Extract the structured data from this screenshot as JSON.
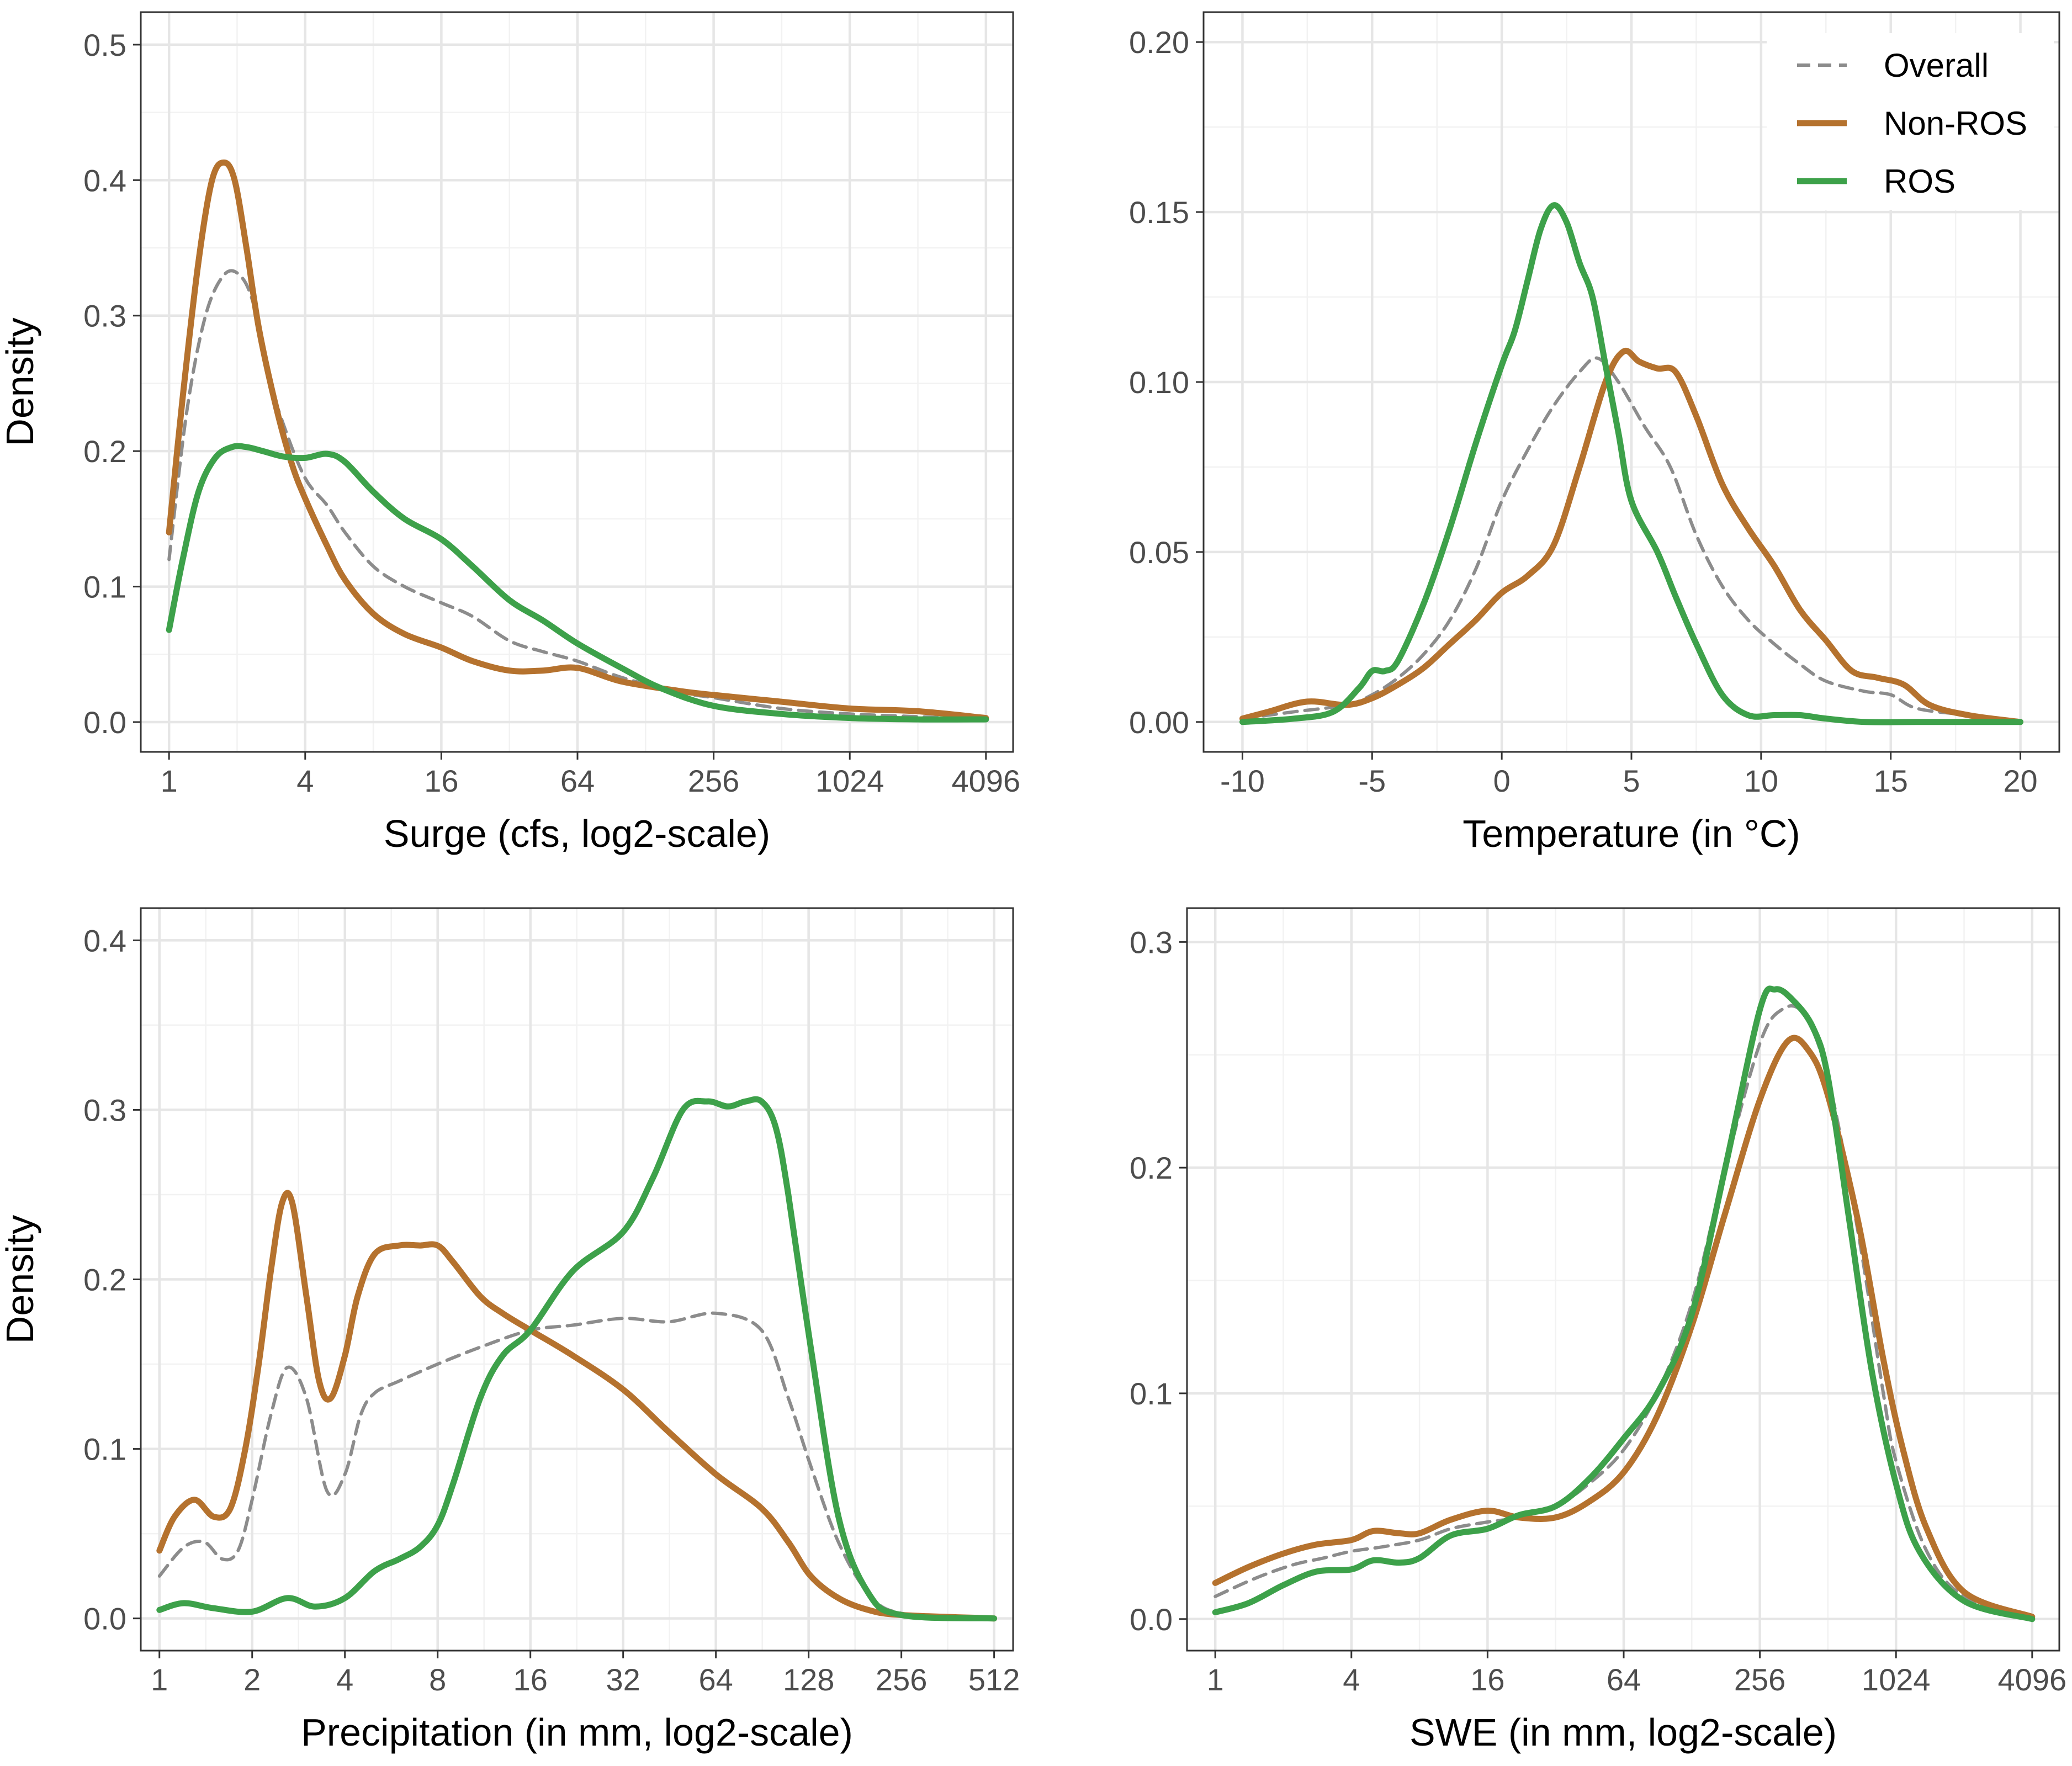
{
  "colors": {
    "overall": "#8c8c8c",
    "non_ros": "#b5722e",
    "ros": "#3da14a"
  },
  "legend": {
    "position": "top-right",
    "entries": [
      {
        "key": "overall",
        "label": "Overall"
      },
      {
        "key": "non_ros",
        "label": "Non-ROS"
      },
      {
        "key": "ros",
        "label": "ROS"
      }
    ]
  },
  "chart_data": [
    {
      "type": "line",
      "xlabel": "Surge (cfs, log2-scale)",
      "ylabel": "Density",
      "xscale": "log2",
      "xlim": [
        0.75,
        5400
      ],
      "ylim": [
        -0.022,
        0.524
      ],
      "xticks": [
        1,
        4,
        16,
        64,
        256,
        1024,
        4096
      ],
      "xtick_labels": [
        "1",
        "4",
        "16",
        "64",
        "256",
        "1024",
        "4096"
      ],
      "yticks": [
        0.0,
        0.1,
        0.2,
        0.3,
        0.4,
        0.5
      ],
      "ytick_labels": [
        "0.0",
        "0.1",
        "0.2",
        "0.3",
        "0.4",
        "0.5"
      ],
      "series": [
        {
          "key": "overall",
          "name": "Overall",
          "x": [
            1,
            1.2,
            1.45,
            1.75,
            2.05,
            2.35,
            2.7,
            3.2,
            4,
            5,
            6,
            8,
            11,
            16,
            22,
            32,
            45,
            64,
            100,
            180,
            256,
            512,
            1024,
            2048,
            4096
          ],
          "y": [
            0.12,
            0.23,
            0.3,
            0.33,
            0.33,
            0.31,
            0.26,
            0.22,
            0.18,
            0.16,
            0.14,
            0.115,
            0.1,
            0.088,
            0.078,
            0.06,
            0.052,
            0.045,
            0.033,
            0.022,
            0.018,
            0.01,
            0.006,
            0.004,
            0.002
          ]
        },
        {
          "key": "non_ros",
          "name": "Non-ROS",
          "x": [
            1,
            1.15,
            1.35,
            1.55,
            1.75,
            1.95,
            2.2,
            2.5,
            3,
            3.5,
            4,
            5,
            6,
            8,
            11,
            16,
            22,
            32,
            45,
            64,
            100,
            180,
            256,
            512,
            1024,
            2048,
            4096
          ],
          "y": [
            0.14,
            0.24,
            0.34,
            0.4,
            0.413,
            0.4,
            0.35,
            0.29,
            0.23,
            0.19,
            0.165,
            0.13,
            0.105,
            0.08,
            0.065,
            0.055,
            0.045,
            0.038,
            0.038,
            0.04,
            0.03,
            0.023,
            0.02,
            0.015,
            0.01,
            0.008,
            0.003
          ]
        },
        {
          "key": "ros",
          "name": "ROS",
          "x": [
            1,
            1.15,
            1.35,
            1.6,
            1.9,
            2.2,
            2.6,
            3.2,
            4,
            5,
            6,
            8,
            11,
            16,
            22,
            32,
            45,
            64,
            100,
            150,
            256,
            512,
            1024,
            2048,
            4096
          ],
          "y": [
            0.068,
            0.12,
            0.17,
            0.195,
            0.203,
            0.203,
            0.2,
            0.196,
            0.195,
            0.198,
            0.192,
            0.17,
            0.15,
            0.135,
            0.115,
            0.09,
            0.075,
            0.058,
            0.04,
            0.025,
            0.012,
            0.006,
            0.003,
            0.002,
            0.002
          ]
        }
      ]
    },
    {
      "type": "line",
      "xlabel": "Temperature (in °C)",
      "ylabel": "",
      "xscale": "linear",
      "xlim": [
        -11.5,
        21.5
      ],
      "ylim": [
        -0.0088,
        0.2088
      ],
      "xticks": [
        -10,
        -5,
        0,
        5,
        10,
        15,
        20
      ],
      "xtick_labels": [
        "-10",
        "-5",
        "0",
        "5",
        "10",
        "15",
        "20"
      ],
      "yticks": [
        0.0,
        0.05,
        0.1,
        0.15,
        0.2
      ],
      "ytick_labels": [
        "0.00",
        "0.05",
        "0.10",
        "0.15",
        "0.20"
      ],
      "series": [
        {
          "key": "overall",
          "name": "Overall",
          "x": [
            -10,
            -8,
            -6,
            -5,
            -4,
            -3,
            -2,
            -1,
            0,
            1,
            2,
            3,
            3.7,
            4.5,
            5.5,
            6.5,
            7.5,
            8.5,
            9.5,
            10.5,
            11.5,
            12.5,
            14,
            15,
            16,
            18,
            20
          ],
          "y": [
            0.001,
            0.003,
            0.005,
            0.008,
            0.013,
            0.02,
            0.03,
            0.045,
            0.065,
            0.08,
            0.093,
            0.103,
            0.107,
            0.1,
            0.087,
            0.075,
            0.055,
            0.04,
            0.03,
            0.023,
            0.017,
            0.012,
            0.009,
            0.008,
            0.004,
            0.002,
            0.0
          ]
        },
        {
          "key": "non_ros",
          "name": "Non-ROS",
          "x": [
            -10,
            -9,
            -7.5,
            -6,
            -5,
            -4,
            -3,
            -2,
            -1,
            0,
            1,
            2,
            3,
            4,
            4.7,
            5.3,
            6,
            6.7,
            7.5,
            8.5,
            9.5,
            10.5,
            11.5,
            12.5,
            13.5,
            14.5,
            15.5,
            16.5,
            18,
            20
          ],
          "y": [
            0.001,
            0.003,
            0.006,
            0.005,
            0.007,
            0.011,
            0.016,
            0.023,
            0.03,
            0.038,
            0.043,
            0.052,
            0.075,
            0.1,
            0.109,
            0.106,
            0.104,
            0.103,
            0.09,
            0.07,
            0.057,
            0.046,
            0.033,
            0.024,
            0.015,
            0.013,
            0.011,
            0.005,
            0.002,
            0.0
          ]
        },
        {
          "key": "ros",
          "name": "ROS",
          "x": [
            -10,
            -8,
            -6.5,
            -5.5,
            -5,
            -4.5,
            -4,
            -3,
            -2,
            -1,
            0,
            0.5,
            1,
            1.5,
            2,
            2.5,
            3,
            3.5,
            4,
            4.5,
            5,
            6,
            6.7,
            7.5,
            8.5,
            9.5,
            10.5,
            11.5,
            12.5,
            14,
            16,
            18,
            20
          ],
          "y": [
            0.0,
            0.001,
            0.003,
            0.01,
            0.015,
            0.015,
            0.018,
            0.035,
            0.057,
            0.082,
            0.105,
            0.115,
            0.13,
            0.145,
            0.152,
            0.147,
            0.135,
            0.125,
            0.105,
            0.085,
            0.065,
            0.05,
            0.037,
            0.023,
            0.008,
            0.002,
            0.002,
            0.002,
            0.001,
            0.0,
            0.0,
            0.0,
            0.0
          ]
        }
      ]
    },
    {
      "type": "line",
      "xlabel": "Precipitation (in mm, log2-scale)",
      "ylabel": "Density",
      "xscale": "log2",
      "xlim": [
        0.87,
        590
      ],
      "ylim": [
        -0.019,
        0.419
      ],
      "xticks": [
        1,
        2,
        4,
        8,
        16,
        32,
        64,
        128,
        256,
        512
      ],
      "xtick_labels": [
        "1",
        "2",
        "4",
        "8",
        "16",
        "32",
        "64",
        "128",
        "256",
        "512"
      ],
      "yticks": [
        0.0,
        0.1,
        0.2,
        0.3,
        0.4
      ],
      "ytick_labels": [
        "0.0",
        "0.1",
        "0.2",
        "0.3",
        "0.4"
      ],
      "series": [
        {
          "key": "overall",
          "name": "Overall",
          "x": [
            1,
            1.2,
            1.4,
            1.6,
            1.8,
            2.0,
            2.3,
            2.6,
            3.0,
            3.5,
            4.0,
            4.5,
            5.0,
            6,
            8,
            11,
            16,
            22,
            32,
            45,
            64,
            90,
            110,
            130,
            160,
            200,
            256,
            512
          ],
          "y": [
            0.025,
            0.042,
            0.045,
            0.035,
            0.04,
            0.07,
            0.12,
            0.148,
            0.13,
            0.075,
            0.085,
            0.12,
            0.133,
            0.14,
            0.15,
            0.16,
            0.17,
            0.173,
            0.177,
            0.175,
            0.18,
            0.17,
            0.13,
            0.09,
            0.045,
            0.015,
            0.003,
            0.0
          ]
        },
        {
          "key": "non_ros",
          "name": "Non-ROS",
          "x": [
            1,
            1.12,
            1.3,
            1.5,
            1.7,
            1.9,
            2.1,
            2.3,
            2.5,
            2.7,
            3.0,
            3.3,
            3.6,
            4.0,
            4.4,
            5.0,
            6.0,
            7.0,
            8.0,
            9.0,
            11,
            13,
            16,
            22,
            32,
            45,
            64,
            90,
            110,
            130,
            160,
            200,
            256,
            512
          ],
          "y": [
            0.04,
            0.06,
            0.07,
            0.06,
            0.065,
            0.1,
            0.15,
            0.205,
            0.245,
            0.245,
            0.19,
            0.14,
            0.13,
            0.155,
            0.19,
            0.215,
            0.22,
            0.22,
            0.22,
            0.21,
            0.19,
            0.18,
            0.17,
            0.155,
            0.135,
            0.11,
            0.085,
            0.065,
            0.045,
            0.025,
            0.012,
            0.005,
            0.002,
            0.0
          ]
        },
        {
          "key": "ros",
          "name": "ROS",
          "x": [
            1,
            1.2,
            1.5,
            2.0,
            2.6,
            3.2,
            4.0,
            5.0,
            6.0,
            7.0,
            8.0,
            9.0,
            11,
            13,
            16,
            22,
            32,
            40,
            50,
            60,
            70,
            80,
            90,
            100,
            110,
            130,
            160,
            200,
            256,
            512
          ],
          "y": [
            0.005,
            0.009,
            0.006,
            0.004,
            0.012,
            0.007,
            0.012,
            0.028,
            0.035,
            0.042,
            0.055,
            0.08,
            0.13,
            0.155,
            0.17,
            0.205,
            0.228,
            0.26,
            0.3,
            0.305,
            0.302,
            0.305,
            0.305,
            0.29,
            0.25,
            0.16,
            0.06,
            0.015,
            0.002,
            0.0
          ]
        }
      ]
    },
    {
      "type": "line",
      "xlabel": "SWE (in mm, log2-scale)",
      "ylabel": "",
      "xscale": "log2",
      "xlim": [
        0.75,
        5400
      ],
      "ylim": [
        -0.014,
        0.315
      ],
      "xticks": [
        1,
        4,
        16,
        64,
        256,
        1024,
        4096
      ],
      "xtick_labels": [
        "1",
        "4",
        "16",
        "64",
        "256",
        "1024",
        "4096"
      ],
      "yticks": [
        0.0,
        0.1,
        0.2,
        0.3
      ],
      "ytick_labels": [
        "0.0",
        "0.1",
        "0.2",
        "0.3"
      ],
      "series": [
        {
          "key": "overall",
          "name": "Overall",
          "x": [
            1,
            1.5,
            2.2,
            3,
            4,
            5.5,
            8,
            11,
            16,
            22,
            32,
            45,
            64,
            90,
            128,
            180,
            256,
            320,
            400,
            512,
            700,
            900,
            1024,
            1400,
            2048,
            4096
          ],
          "y": [
            0.01,
            0.018,
            0.024,
            0.027,
            0.03,
            0.032,
            0.035,
            0.04,
            0.043,
            0.045,
            0.05,
            0.06,
            0.075,
            0.1,
            0.14,
            0.2,
            0.255,
            0.27,
            0.268,
            0.24,
            0.17,
            0.1,
            0.07,
            0.03,
            0.01,
            0.0
          ]
        },
        {
          "key": "non_ros",
          "name": "Non-ROS",
          "x": [
            1,
            1.4,
            2,
            2.8,
            4,
            5,
            6.5,
            8,
            11,
            16,
            22,
            32,
            45,
            64,
            90,
            128,
            180,
            256,
            340,
            420,
            512,
            700,
            900,
            1100,
            1400,
            2048,
            4096
          ],
          "y": [
            0.016,
            0.023,
            0.029,
            0.033,
            0.035,
            0.039,
            0.038,
            0.038,
            0.044,
            0.048,
            0.045,
            0.045,
            0.052,
            0.065,
            0.09,
            0.13,
            0.18,
            0.23,
            0.256,
            0.252,
            0.232,
            0.175,
            0.115,
            0.075,
            0.04,
            0.012,
            0.001
          ]
        },
        {
          "key": "ros",
          "name": "ROS",
          "x": [
            1,
            1.4,
            2,
            2.8,
            4,
            5,
            6.5,
            8,
            11,
            16,
            22,
            32,
            45,
            64,
            90,
            128,
            180,
            256,
            300,
            360,
            440,
            512,
            640,
            800,
            1024,
            1300,
            2048,
            4096
          ],
          "y": [
            0.003,
            0.007,
            0.015,
            0.021,
            0.022,
            0.026,
            0.025,
            0.027,
            0.037,
            0.04,
            0.046,
            0.05,
            0.062,
            0.08,
            0.1,
            0.135,
            0.2,
            0.27,
            0.279,
            0.274,
            0.262,
            0.24,
            0.175,
            0.11,
            0.06,
            0.03,
            0.008,
            0.0
          ]
        }
      ]
    }
  ]
}
